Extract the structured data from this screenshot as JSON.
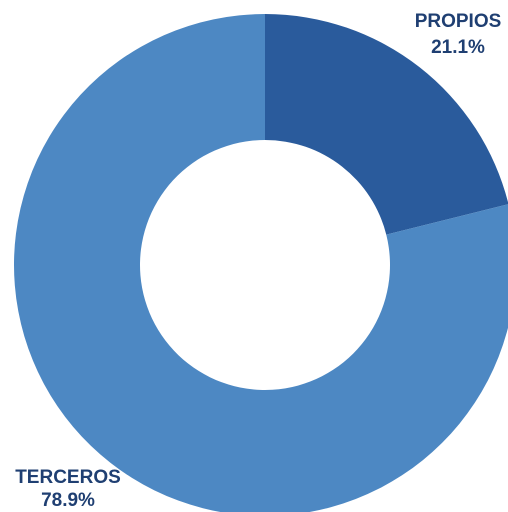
{
  "chart_data": {
    "type": "donut",
    "categories": [
      "PROPIOS",
      "TERCEROS"
    ],
    "values": [
      21.1,
      78.9
    ],
    "value_labels": [
      "21.1%",
      "78.9%"
    ],
    "colors": [
      "#2a5b9c",
      "#4d88c3"
    ]
  }
}
